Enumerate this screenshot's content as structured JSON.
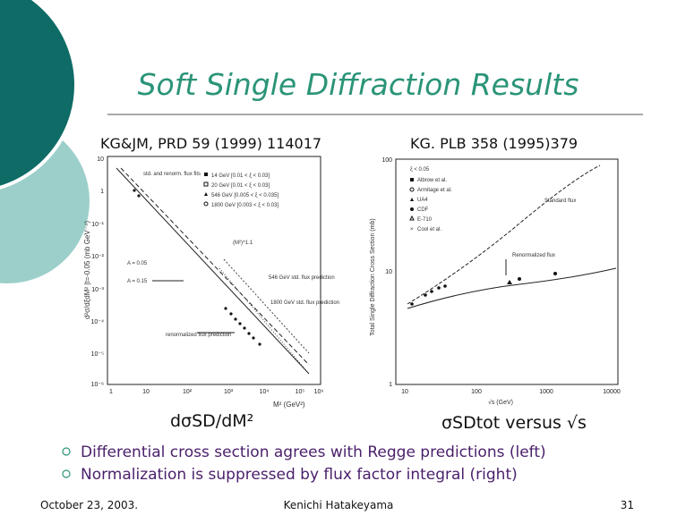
{
  "header": {
    "title": "Soft Single Diffraction Results"
  },
  "references": [
    "KG&JM, PRD 59 (1999) 114017",
    "KG. PLB 358 (1995)379"
  ],
  "left_plot": {
    "y_label": "d²σ/dξdM² |t=-0.05 (mb GeV⁻⁴)",
    "x_label": "M² (GeV²)",
    "y_ticks": [
      "10",
      "1",
      "10⁻¹",
      "10⁻²",
      "10⁻³",
      "10⁻⁴",
      "10⁻⁵",
      "10⁻⁶"
    ],
    "x_ticks": [
      "1",
      "10",
      "10²",
      "10³",
      "10⁴",
      "10⁵",
      "10⁶"
    ],
    "legend": [
      "14 GeV [0.01 < ξ < 0.03]",
      "20 GeV [0.01 < ξ < 0.03]",
      "546 GeV [0.005 < ξ < 0.035]",
      "1800 GeV [0.003 < ξ < 0.03]"
    ],
    "annotations": [
      "std. and renorm. flux fits",
      "(M²)^1.1",
      "A = 0.05",
      "A = 0.15",
      "546 GeV std. flux prediction",
      "1800 GeV std. flux prediction",
      "renormalized flux prediction"
    ]
  },
  "right_plot": {
    "y_label": "Total Single Diffraction Cross Section (mb)",
    "x_label": "√s (GeV)",
    "y_ticks": [
      "100",
      "10",
      "1"
    ],
    "x_ticks": [
      "10",
      "100",
      "1000",
      "10000"
    ],
    "legend": [
      "ξ < 0.05",
      "Albrow et al.",
      "Armitage et al.",
      "UA4",
      "CDF",
      "E-710",
      "Cool et al."
    ],
    "annotations": [
      "Standard flux",
      "Renormalized flux"
    ]
  },
  "captions": [
    "dσSD/dM²",
    "σSDtot versus √s"
  ],
  "bullets": [
    "Differential cross section agrees with Regge predictions (left)",
    "Normalization is suppressed by flux factor integral (right)"
  ],
  "footer": {
    "date": "October 23, 2003.",
    "author": "Kenichi Hatakeyama",
    "page": "31"
  }
}
